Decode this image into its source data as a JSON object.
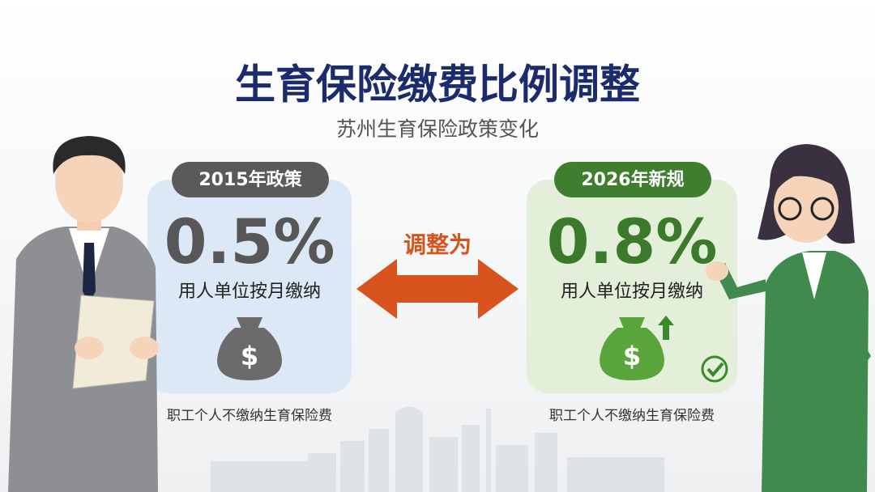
{
  "header": {
    "title": "生育保险缴费比例调整",
    "subtitle": "苏州生育保险政策变化"
  },
  "left_card": {
    "badge": "2015年政策",
    "rate": "0.5%",
    "description": "用人单位按月缴纳",
    "icon_symbol": "$",
    "footnote": "职工个人不缴纳生育保险费"
  },
  "arrow": {
    "label": "调整为"
  },
  "right_card": {
    "badge": "2026年新规",
    "rate": "0.8%",
    "description": "用人单位按月缴纳",
    "icon_symbol": "$",
    "footnote": "职工个人不缴纳生育保险费"
  }
}
